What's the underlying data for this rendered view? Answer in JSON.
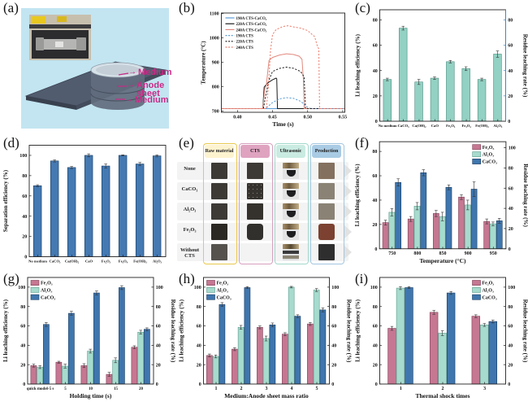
{
  "icons": {
    "annotation_arrow": "→"
  },
  "panels": {
    "a": {
      "label": "(a)",
      "annotations": [
        "Medium",
        "Anode sheet",
        "Medium"
      ],
      "annotation_color": "#c92a86"
    },
    "b": {
      "label": "(b)"
    },
    "c": {
      "label": "(c)"
    },
    "d": {
      "label": "(d)"
    },
    "e": {
      "label": "(e)",
      "columns": [
        {
          "label": "Raw material",
          "bg": "#fdf3cf",
          "border": "#e8c94e"
        },
        {
          "label": "CTS",
          "bg": "#dfa3c0",
          "border": "#d8a0bf"
        },
        {
          "label": "Ultrasonic",
          "bg": "#c9ebe1",
          "border": "#a2d8cb"
        },
        {
          "label": "Production",
          "bg": "#a9cbe4",
          "border": "#a3c6e0"
        }
      ],
      "rows": [
        {
          "label": "None",
          "cells": [
            "sq-dark",
            "sq-dark",
            "beaker",
            "sq-brown"
          ]
        },
        {
          "label": "CaCO₃",
          "cells": [
            "sq-dark",
            "sq-speck",
            "beaker",
            "sq-graybrown"
          ]
        },
        {
          "label": "Al₂O₃",
          "cells": [
            "sq-dark",
            "sq-dark2",
            "beaker",
            "sq-graybrown"
          ]
        },
        {
          "label": "Fe₂O₃",
          "cells": [
            "sq-darker",
            "sq-round",
            "beaker",
            "sq-red"
          ]
        },
        {
          "label": "Without CTS",
          "cells": [
            "sq-gray",
            null,
            "beaker2",
            "sq-black"
          ]
        }
      ]
    },
    "f": {
      "label": "(f)"
    },
    "g": {
      "label": "(g)"
    },
    "h": {
      "label": "(h)"
    },
    "i": {
      "label": "(i)"
    }
  },
  "chart_data": [
    {
      "id": "b",
      "type": "line",
      "xlabel": "Time (s)",
      "ylabel": "Temperature (°C)",
      "xlim": [
        0.377,
        0.553
      ],
      "ylim": [
        695,
        1102
      ],
      "xticks": [
        {
          "v": 0.4,
          "label": "0.40"
        },
        {
          "v": 0.45,
          "label": "0.45"
        },
        {
          "v": 0.5,
          "label": "0.50"
        },
        {
          "v": 0.55,
          "label": "0.55"
        }
      ],
      "yticks": [
        700,
        800,
        900,
        1000,
        1100
      ],
      "margins": {
        "l": 56,
        "r": 8,
        "t": 16,
        "b": 28
      },
      "legend_pos": "top-left",
      "series": [
        {
          "name": "190A CTS-CaCO₃",
          "color": "#5b9bd5",
          "dash": false,
          "points": [
            [
              0.377,
              710
            ],
            [
              0.553,
              710
            ]
          ]
        },
        {
          "name": "220A CTS-CaCO₃",
          "color": "#1a1a1a",
          "dash": false,
          "points": [
            [
              0.377,
              710
            ],
            [
              0.436,
              710
            ],
            [
              0.438,
              798
            ],
            [
              0.443,
              815
            ],
            [
              0.45,
              828
            ],
            [
              0.455,
              835
            ],
            [
              0.456,
              832
            ],
            [
              0.457,
              710
            ],
            [
              0.553,
              710
            ]
          ]
        },
        {
          "name": "240A CTS-CaCO₃",
          "color": "#e08a7f",
          "dash": false,
          "points": [
            [
              0.377,
              710
            ],
            [
              0.436,
              710
            ],
            [
              0.439,
              793
            ],
            [
              0.441,
              803
            ],
            [
              0.443,
              858
            ],
            [
              0.445,
              908
            ],
            [
              0.45,
              920
            ],
            [
              0.46,
              930
            ],
            [
              0.47,
              935
            ],
            [
              0.48,
              932
            ],
            [
              0.488,
              925
            ],
            [
              0.492,
              912
            ],
            [
              0.494,
              828
            ],
            [
              0.495,
              710
            ],
            [
              0.553,
              710
            ]
          ]
        },
        {
          "name": "190A CTS",
          "color": "#5b9bd5",
          "dash": true,
          "points": [
            [
              0.377,
              710
            ],
            [
              0.44,
              710
            ],
            [
              0.45,
              735
            ],
            [
              0.46,
              750
            ],
            [
              0.47,
              755
            ],
            [
              0.48,
              752
            ],
            [
              0.49,
              740
            ],
            [
              0.5,
              715
            ],
            [
              0.505,
              710
            ],
            [
              0.553,
              710
            ]
          ]
        },
        {
          "name": "220A CTS",
          "color": "#1a1a1a",
          "dash": true,
          "points": [
            [
              0.377,
              710
            ],
            [
              0.437,
              710
            ],
            [
              0.44,
              760
            ],
            [
              0.445,
              828
            ],
            [
              0.45,
              862
            ],
            [
              0.46,
              875
            ],
            [
              0.47,
              880
            ],
            [
              0.48,
              875
            ],
            [
              0.49,
              862
            ],
            [
              0.495,
              840
            ],
            [
              0.497,
              710
            ],
            [
              0.553,
              710
            ]
          ]
        },
        {
          "name": "240A CTS",
          "color": "#ec7e6e",
          "dash": true,
          "points": [
            [
              0.377,
              710
            ],
            [
              0.441,
              710
            ],
            [
              0.444,
              800
            ],
            [
              0.447,
              948
            ],
            [
              0.45,
              1014
            ],
            [
              0.455,
              1034
            ],
            [
              0.465,
              1047
            ],
            [
              0.472,
              1050
            ],
            [
              0.48,
              1045
            ],
            [
              0.49,
              1040
            ],
            [
              0.5,
              1030
            ],
            [
              0.51,
              1005
            ],
            [
              0.514,
              965
            ],
            [
              0.516,
              955
            ],
            [
              0.517,
              710
            ],
            [
              0.553,
              710
            ]
          ]
        }
      ]
    },
    {
      "id": "c",
      "type": "bar",
      "categories": [
        "No medium",
        "CaCO₃",
        "Ca(OH)₂",
        "CaO",
        "Fe₂O₃",
        "Fe₃O₄",
        "Fe(OH)₃",
        "Al₂O₃"
      ],
      "series": [
        {
          "name": "",
          "color": "#92d1c3",
          "edge": "#4d8d80",
          "values": [
            33,
            73.5,
            31,
            34,
            47,
            41.5,
            33,
            53
          ],
          "errors": [
            1,
            1.5,
            2,
            1,
            1,
            1.5,
            1,
            2.5
          ]
        }
      ],
      "ylabel": "Li leaching efficiency (%)",
      "ylim": [
        0,
        88
      ],
      "yticks": [
        0,
        20,
        40,
        60,
        80
      ],
      "right": {
        "label": "Residue leaching rate (%)",
        "color": "#3a87c8",
        "lim": [
          0,
          88
        ],
        "ticks": [
          0,
          20,
          40,
          60,
          80
        ]
      },
      "margins": {
        "l": 34,
        "r": 27,
        "t": 12,
        "b": 17
      },
      "cat_font": 4.6
    },
    {
      "id": "d",
      "type": "bar",
      "categories": [
        "No medium",
        "CaCO₃",
        "Ca(OH)₂",
        "CaO",
        "Fe₂O₃",
        "Fe₃O₄",
        "Fe(OH)₃",
        "Al₂O₃"
      ],
      "series": [
        {
          "name": "",
          "color": "#4479b2",
          "edge": "#16395f",
          "values": [
            70,
            94.5,
            88,
            100,
            89.5,
            100,
            91.5,
            99.5
          ],
          "errors": [
            1,
            1,
            1,
            1.5,
            2,
            0.5,
            1.5,
            1
          ]
        }
      ],
      "ylabel": "Separation efficiency (%)",
      "ylim": [
        0,
        110
      ],
      "yticks": [
        0,
        20,
        40,
        60,
        80,
        100
      ],
      "margins": {
        "l": 36,
        "r": 12,
        "t": 12,
        "b": 17
      },
      "cat_font": 4.6
    },
    {
      "id": "f",
      "type": "bar",
      "categories": [
        "750",
        "800",
        "850",
        "900",
        "950"
      ],
      "xlabel": "Temperature (°C)",
      "series": [
        {
          "name": "Fe₂O₃",
          "color": "#c67792",
          "edge": "#7d4057",
          "values": [
            21.5,
            24.5,
            29,
            42.5,
            22.5
          ],
          "errors": [
            2,
            2,
            2.5,
            2,
            2
          ]
        },
        {
          "name": "Al₂O₃",
          "color": "#a6dbcd",
          "edge": "#5f9c8d",
          "values": [
            30,
            35,
            26.5,
            36,
            20.5
          ],
          "errors": [
            3,
            3,
            3.5,
            4,
            1.5
          ]
        },
        {
          "name": "CaCO₃",
          "color": "#3f76ae",
          "edge": "#16395f",
          "values": [
            54.5,
            62.5,
            50.5,
            49,
            23
          ],
          "errors": [
            3,
            2.5,
            2,
            6,
            2
          ]
        }
      ],
      "ylabel": "Li leaching efficiency (%)",
      "ylim": [
        0,
        88
      ],
      "yticks": [
        0,
        20,
        40,
        60,
        80
      ],
      "right": {
        "label": "Residue  leaching rate (%)",
        "color": "#111",
        "lim": [
          0,
          106
        ],
        "ticks": [
          0,
          20,
          40,
          60,
          80,
          100
        ]
      },
      "margins": {
        "l": 34,
        "r": 27,
        "t": 8,
        "b": 27
      },
      "cat_font": 6,
      "legend_pos": "top-right"
    },
    {
      "id": "g",
      "type": "bar",
      "categories": [
        "quick model-5 s",
        "5",
        "10",
        "15",
        "20"
      ],
      "xlabel": "Holding time (s)",
      "series": [
        {
          "name": "Fe₂O₃",
          "color": "#c67792",
          "edge": "#7d4057",
          "values": [
            19,
            22.5,
            19,
            10,
            38
          ],
          "errors": [
            1.5,
            1,
            2,
            2,
            1.5
          ]
        },
        {
          "name": "Al₂O₃",
          "color": "#a6dbcd",
          "edge": "#5f9c8d",
          "values": [
            17.5,
            18.5,
            34,
            24.5,
            53.5
          ],
          "errors": [
            1.5,
            2,
            2,
            2.5,
            2
          ]
        },
        {
          "name": "CaCO₃",
          "color": "#3f76ae",
          "edge": "#16395f",
          "values": [
            61.5,
            73,
            94,
            99.5,
            56.5
          ],
          "errors": [
            2,
            2,
            2,
            2,
            1.5
          ]
        }
      ],
      "ylabel": "Li leaching efficiency (%)",
      "ylim": [
        0,
        110
      ],
      "yticks": [
        0,
        20,
        40,
        60,
        80,
        100
      ],
      "right": {
        "label": "Residue  leaching rate (%)",
        "color": "#111",
        "lim": [
          0,
          110
        ],
        "ticks": [
          0,
          20,
          40,
          60,
          80,
          100
        ]
      },
      "margins": {
        "l": 34,
        "r": 27,
        "t": 8,
        "b": 27
      },
      "cat_font": 5,
      "legend_pos": "top-left"
    },
    {
      "id": "h",
      "type": "bar",
      "categories": [
        "1",
        "2",
        "3",
        "4",
        "5"
      ],
      "xlabel": "Medium:Anode sheet mass ratio",
      "series": [
        {
          "name": "Fe₂O₃",
          "color": "#c67792",
          "edge": "#7d4057",
          "values": [
            29.5,
            36,
            58.5,
            51.5,
            62
          ],
          "errors": [
            1.5,
            1.5,
            1.5,
            1.5,
            1.5
          ]
        },
        {
          "name": "Al₂O₃",
          "color": "#a6dbcd",
          "edge": "#5f9c8d",
          "values": [
            28.5,
            58.5,
            47,
            100,
            97
          ],
          "errors": [
            1.5,
            2,
            2.5,
            0.8,
            1.5
          ]
        },
        {
          "name": "CaCO₃",
          "color": "#3f76ae",
          "edge": "#16395f",
          "values": [
            82,
            99.5,
            61,
            70,
            76.5
          ],
          "errors": [
            2,
            1,
            2,
            1.5,
            2
          ]
        }
      ],
      "ylabel": "Li leaching efficiency (%)",
      "ylim": [
        0,
        110
      ],
      "yticks": [
        0,
        20,
        40,
        60,
        80,
        100
      ],
      "right": {
        "label": "Residue  leaching rate (%)",
        "color": "#111",
        "lim": [
          0,
          110
        ],
        "ticks": [
          0,
          20,
          40,
          60,
          80,
          100
        ]
      },
      "margins": {
        "l": 34,
        "r": 27,
        "t": 8,
        "b": 27
      },
      "cat_font": 6,
      "legend_pos": "top-left"
    },
    {
      "id": "i",
      "type": "bar",
      "categories": [
        "1",
        "2",
        "3"
      ],
      "xlabel": "Thermal shock times",
      "series": [
        {
          "name": "Fe₂O₃",
          "color": "#c67792",
          "edge": "#7d4057",
          "values": [
            57.5,
            74,
            70
          ],
          "errors": [
            2,
            2,
            1.5
          ]
        },
        {
          "name": "Al₂O₃",
          "color": "#a6dbcd",
          "edge": "#5f9c8d",
          "values": [
            99,
            52.5,
            61
          ],
          "errors": [
            1.5,
            2.5,
            1.5
          ]
        },
        {
          "name": "CaCO₃",
          "color": "#3f76ae",
          "edge": "#16395f",
          "values": [
            99.5,
            94,
            64.5
          ],
          "errors": [
            1,
            1.5,
            1.5
          ]
        }
      ],
      "ylabel": "Li leaching efficiency (%)",
      "ylim": [
        0,
        110
      ],
      "yticks": [
        0,
        20,
        40,
        60,
        80,
        100
      ],
      "right": {
        "label": "Residue  leaching rate (%)",
        "color": "#111",
        "lim": [
          0,
          110
        ],
        "ticks": [
          0,
          20,
          40,
          60,
          80,
          100
        ]
      },
      "margins": {
        "l": 34,
        "r": 27,
        "t": 8,
        "b": 27
      },
      "cat_font": 6,
      "legend_pos": "top-right"
    }
  ]
}
